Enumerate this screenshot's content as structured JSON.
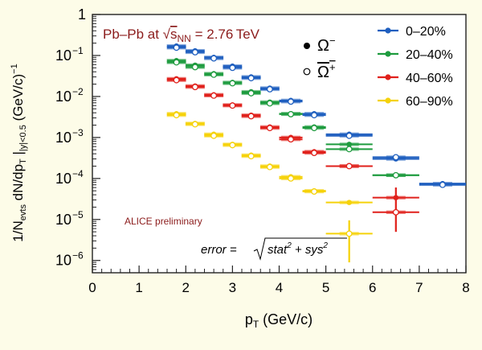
{
  "chart_data": {
    "type": "scatter",
    "title": "Pb–Pb at √sNN = 2.76 TeV",
    "title_parts": {
      "system": "Pb–Pb at ",
      "root": "√",
      "s": "s",
      "nn": "NN",
      "energy": " = 2.76 TeV"
    },
    "xlabel": "pT (GeV/c)",
    "xlabel_parts": {
      "p": "p",
      "sub": "T",
      "rest": " (GeV/c)"
    },
    "ylabel": "1/Nevts dN/dpT | |y|<0.5 (GeV/c)−1",
    "ylabel_parts": {
      "a": "1/N",
      "a_sub": "evts",
      "b": " dN/dp",
      "b_sub": "T",
      "bar": " |",
      "c_sub": "|y|<0.5",
      "d": " (GeV/c)",
      "d_sup": "−1"
    },
    "xlim": [
      0,
      8
    ],
    "ylim_log10": [
      -6.3,
      0
    ],
    "xticks": [
      "0",
      "1",
      "2",
      "3",
      "4",
      "5",
      "6",
      "7",
      "8"
    ],
    "yticks": [
      {
        "label": "1",
        "exp": null,
        "log": 0
      },
      {
        "label": "10",
        "exp": "−1",
        "log": -1
      },
      {
        "label": "10",
        "exp": "−2",
        "log": -2
      },
      {
        "label": "10",
        "exp": "−3",
        "log": -3
      },
      {
        "label": "10",
        "exp": "−4",
        "log": -4
      },
      {
        "label": "10",
        "exp": "−5",
        "log": -5
      },
      {
        "label": "10",
        "exp": "−6",
        "log": -6
      }
    ],
    "particle_legend": {
      "omega_minus": "Ω",
      "omega_minus_sup": "−",
      "omega_plus": "Ω",
      "omega_plus_sup": "+"
    },
    "annotations": {
      "alice": "ALICE preliminary",
      "error_formula": "error = √(stat² + sys²)",
      "error_lhs": "error = ",
      "error_root": "stat",
      "error_plus": " + sys",
      "error_two": "2"
    },
    "series": [
      {
        "name": "0–20%",
        "color": "#1f5fbf",
        "points": [
          {
            "x": 1.8,
            "xlo": 1.6,
            "xhi": 2.0,
            "om": 0.17,
            "omb": 0.155
          },
          {
            "x": 2.2,
            "xlo": 2.0,
            "xhi": 2.4,
            "om": 0.13,
            "omb": 0.12
          },
          {
            "x": 2.6,
            "xlo": 2.4,
            "xhi": 2.8,
            "om": 0.09,
            "omb": 0.085
          },
          {
            "x": 3.0,
            "xlo": 2.8,
            "xhi": 3.2,
            "om": 0.055,
            "omb": 0.05
          },
          {
            "x": 3.4,
            "xlo": 3.2,
            "xhi": 3.6,
            "om": 0.03,
            "omb": 0.028
          },
          {
            "x": 3.8,
            "xlo": 3.6,
            "xhi": 4.0,
            "om": 0.016,
            "omb": 0.015
          },
          {
            "x": 4.25,
            "xlo": 4.0,
            "xhi": 4.5,
            "om": 0.008,
            "omb": 0.0075
          },
          {
            "x": 4.75,
            "xlo": 4.5,
            "xhi": 5.0,
            "om": 0.0038,
            "omb": 0.0035
          },
          {
            "x": 5.5,
            "xlo": 5.0,
            "xhi": 6.0,
            "om": 0.0012,
            "omb": 0.0011
          },
          {
            "x": 6.5,
            "xlo": 6.0,
            "xhi": 7.0,
            "om": 0.0003,
            "omb": 0.00033
          },
          {
            "x": 7.5,
            "xlo": 7.0,
            "xhi": 8.0,
            "om": 7.5e-05,
            "omb": 7e-05
          }
        ]
      },
      {
        "name": "20–40%",
        "color": "#1e9b3e",
        "points": [
          {
            "x": 1.8,
            "xlo": 1.6,
            "xhi": 2.0,
            "om": 0.075,
            "omb": 0.068
          },
          {
            "x": 2.2,
            "xlo": 2.0,
            "xhi": 2.4,
            "om": 0.058,
            "omb": 0.052
          },
          {
            "x": 2.6,
            "xlo": 2.4,
            "xhi": 2.8,
            "om": 0.036,
            "omb": 0.034
          },
          {
            "x": 3.0,
            "xlo": 2.8,
            "xhi": 3.2,
            "om": 0.022,
            "omb": 0.021
          },
          {
            "x": 3.4,
            "xlo": 3.2,
            "xhi": 3.6,
            "om": 0.013,
            "omb": 0.012
          },
          {
            "x": 3.8,
            "xlo": 3.6,
            "xhi": 4.0,
            "om": 0.0073,
            "omb": 0.0068
          },
          {
            "x": 4.25,
            "xlo": 4.0,
            "xhi": 4.5,
            "om": 0.0038,
            "omb": 0.0037
          },
          {
            "x": 4.75,
            "xlo": 4.5,
            "xhi": 5.0,
            "om": 0.0018,
            "omb": 0.0017
          },
          {
            "x": 5.5,
            "xlo": 5.0,
            "xhi": 6.0,
            "om": 0.00068,
            "omb": 0.00052
          },
          {
            "x": 6.5,
            "xlo": 6.0,
            "xhi": 7.0,
            "om": 0.00012,
            "omb": 0.00012
          }
        ]
      },
      {
        "name": "40–60%",
        "color": "#e0201b",
        "points": [
          {
            "x": 1.8,
            "xlo": 1.6,
            "xhi": 2.0,
            "om": 0.027,
            "omb": 0.025
          },
          {
            "x": 2.2,
            "xlo": 2.0,
            "xhi": 2.4,
            "om": 0.018,
            "omb": 0.017
          },
          {
            "x": 2.6,
            "xlo": 2.4,
            "xhi": 2.8,
            "om": 0.011,
            "omb": 0.0105
          },
          {
            "x": 3.0,
            "xlo": 2.8,
            "xhi": 3.2,
            "om": 0.0062,
            "omb": 0.006
          },
          {
            "x": 3.4,
            "xlo": 3.2,
            "xhi": 3.6,
            "om": 0.0035,
            "omb": 0.0033
          },
          {
            "x": 3.8,
            "xlo": 3.6,
            "xhi": 4.0,
            "om": 0.0018,
            "omb": 0.0017
          },
          {
            "x": 4.25,
            "xlo": 4.0,
            "xhi": 4.5,
            "om": 0.001,
            "omb": 0.0009
          },
          {
            "x": 4.75,
            "xlo": 4.5,
            "xhi": 5.0,
            "om": 0.00045,
            "omb": 0.00042
          },
          {
            "x": 5.5,
            "xlo": 5.0,
            "xhi": 6.0,
            "om": 0.0002,
            "omb": 0.0002
          },
          {
            "x": 6.5,
            "xlo": 6.0,
            "xhi": 7.0,
            "om": 3.4e-05,
            "omb": 1.5e-05,
            "eylo": 5e-06,
            "eyhi": 6e-05
          }
        ]
      },
      {
        "name": "60–90%",
        "color": "#f5d20a",
        "points": [
          {
            "x": 1.8,
            "xlo": 1.6,
            "xhi": 2.0,
            "om": 0.0038,
            "omb": 0.0035
          },
          {
            "x": 2.2,
            "xlo": 2.0,
            "xhi": 2.4,
            "om": 0.0022,
            "omb": 0.0021
          },
          {
            "x": 2.6,
            "xlo": 2.4,
            "xhi": 2.8,
            "om": 0.0012,
            "omb": 0.0011
          },
          {
            "x": 3.0,
            "xlo": 2.8,
            "xhi": 3.2,
            "om": 0.00068,
            "omb": 0.00065
          },
          {
            "x": 3.4,
            "xlo": 3.2,
            "xhi": 3.6,
            "om": 0.00037,
            "omb": 0.00035
          },
          {
            "x": 3.8,
            "xlo": 3.6,
            "xhi": 4.0,
            "om": 0.0002,
            "omb": 0.00019
          },
          {
            "x": 4.25,
            "xlo": 4.0,
            "xhi": 4.5,
            "om": 0.00011,
            "omb": 0.0001
          },
          {
            "x": 4.75,
            "xlo": 4.5,
            "xhi": 5.0,
            "om": 5e-05,
            "omb": 4.8e-05
          },
          {
            "x": 5.5,
            "xlo": 5.0,
            "xhi": 6.0,
            "om": 2.6e-05,
            "omb": 4.5e-06,
            "eylo": 9e-07,
            "eyhi": 9.5e-06
          }
        ]
      }
    ]
  }
}
